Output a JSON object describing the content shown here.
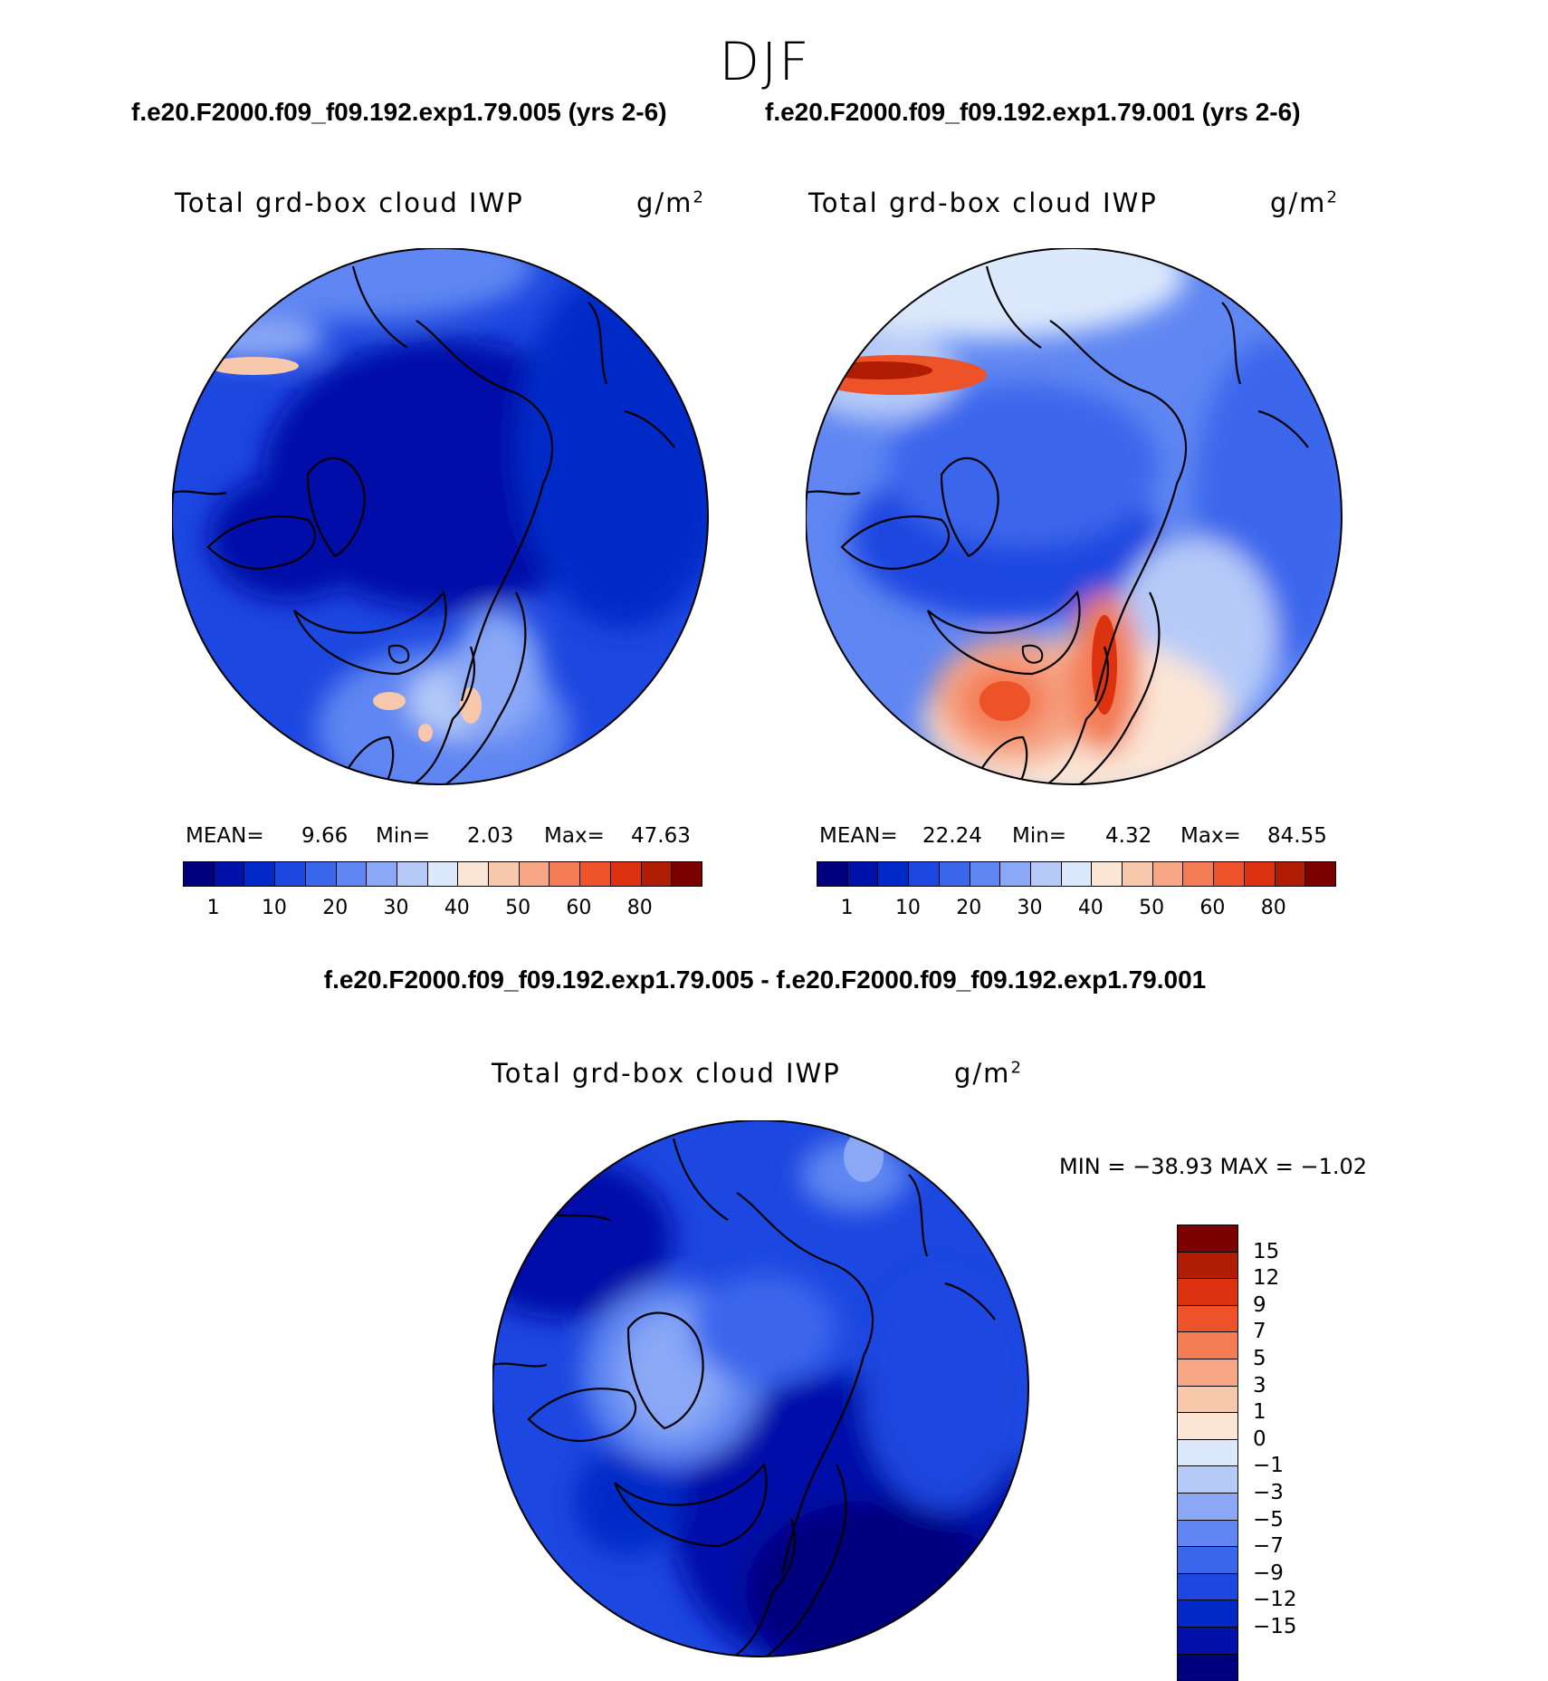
{
  "season": "DJF",
  "case1_header": "f.e20.F2000.f09_f09.192.exp1.79.005 (yrs 2-6)",
  "case2_header": "f.e20.F2000.f09_f09.192.exp1.79.001 (yrs 2-6)",
  "diff_header": "f.e20.F2000.f09_f09.192.exp1.79.005 - f.e20.F2000.f09_f09.192.exp1.79.001",
  "var_title": "Total grd-box cloud IWP",
  "units": "g/m",
  "units_sup": "2",
  "panel1": {
    "mean_label": "MEAN=",
    "mean": "9.66",
    "min_label": "Min=",
    "min": "2.03",
    "max_label": "Max=",
    "max": "47.63"
  },
  "panel2": {
    "mean_label": "MEAN=",
    "mean": "22.24",
    "min_label": "Min=",
    "min": "4.32",
    "max_label": "Max=",
    "max": "84.55"
  },
  "diff_panel": {
    "minmax_text": "MIN = −38.93 MAX =   −1.02"
  },
  "abs_colorbar": {
    "colors": [
      "#00007f",
      "#0010a8",
      "#0029c7",
      "#1c47e0",
      "#3a66ec",
      "#5f86f2",
      "#8aa8f6",
      "#b6caf8",
      "#dce8fb",
      "#fbe6d6",
      "#f8c8ad",
      "#f6a585",
      "#f37c55",
      "#ee5229",
      "#dc3210",
      "#b11d04",
      "#7d0000"
    ],
    "labels": [
      "1",
      "10",
      "20",
      "30",
      "40",
      "50",
      "60",
      "80"
    ]
  },
  "diff_colorbar": {
    "colors": [
      "#7d0000",
      "#b11d04",
      "#dc3210",
      "#ee5229",
      "#f37c55",
      "#f6a585",
      "#f8c8ad",
      "#fbe6d6",
      "#dce8fb",
      "#b6caf8",
      "#8aa8f6",
      "#5f86f2",
      "#3a66ec",
      "#1c47e0",
      "#0029c7",
      "#0010a8",
      "#00007f"
    ],
    "labels": [
      "15",
      "12",
      "9",
      "7",
      "5",
      "3",
      "1",
      "0",
      "−1",
      "−3",
      "−5",
      "−7",
      "−9",
      "−12",
      "−15"
    ]
  },
  "map_colors": {
    "deep_blue": "#0010a8",
    "mid_blue": "#0029c7",
    "blue": "#1c47e0",
    "light_blue": "#5f86f2",
    "pale_blue": "#b6caf8",
    "pale_red": "#f8c8ad",
    "red": "#ee5229",
    "dark_red": "#b11d04"
  }
}
